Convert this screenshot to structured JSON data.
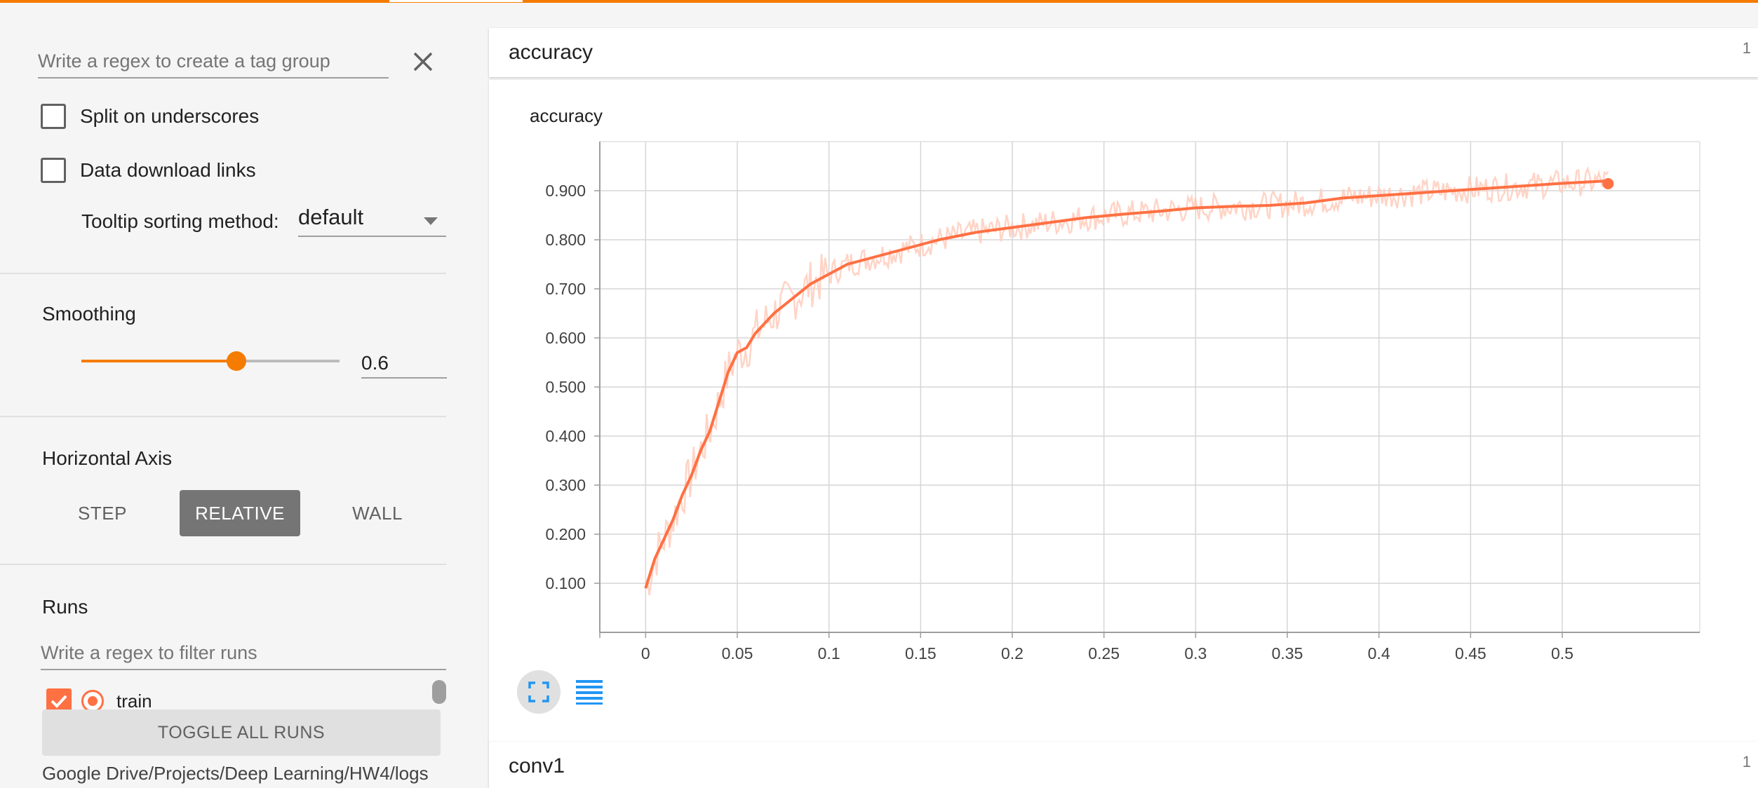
{
  "sidebar": {
    "tag_regex_placeholder": "Write a regex to create a tag group",
    "split_on_underscores_label": "Split on underscores",
    "data_download_links_label": "Data download links",
    "tooltip_sorting_label": "Tooltip sorting method:",
    "tooltip_sorting_value": "default",
    "smoothing": {
      "title": "Smoothing",
      "value": "0.6",
      "fraction": 0.6
    },
    "horizontal_axis": {
      "title": "Horizontal Axis",
      "options": [
        "STEP",
        "RELATIVE",
        "WALL"
      ],
      "selected": "RELATIVE"
    },
    "runs": {
      "title": "Runs",
      "filter_placeholder": "Write a regex to filter runs",
      "items": [
        {
          "name": "train",
          "checked": true,
          "color": "#ff7043"
        }
      ],
      "toggle_label": "TOGGLE ALL RUNS",
      "log_dir": "Google Drive/Projects/Deep Learning/HW4/logs"
    }
  },
  "main": {
    "cards": [
      {
        "title": "accuracy",
        "count": "1"
      },
      {
        "title": "conv1",
        "count": "1"
      }
    ]
  },
  "colors": {
    "accent": "#f57c00",
    "run_line": "#ff7043",
    "run_raw": "#ffccbc",
    "button_blue": "#2196f3"
  },
  "icons": {
    "clear": "close-icon",
    "fit": "fit-domain-icon",
    "log": "log-scale-icon"
  },
  "chart_data": {
    "type": "line",
    "title": "accuracy",
    "xlabel": "",
    "ylabel": "",
    "xlim": [
      -0.025,
      0.575
    ],
    "ylim": [
      0,
      1.0
    ],
    "x_ticks": [
      0,
      0.05,
      0.1,
      0.15,
      0.2,
      0.25,
      0.3,
      0.35,
      0.4,
      0.45,
      0.5
    ],
    "x_tick_labels": [
      "0",
      "0.05",
      "0.1",
      "0.15",
      "0.2",
      "0.25",
      "0.3",
      "0.35",
      "0.4",
      "0.45",
      "0.5"
    ],
    "y_ticks": [
      0.1,
      0.2,
      0.3,
      0.4,
      0.5,
      0.6,
      0.7,
      0.8,
      0.9
    ],
    "y_tick_labels": [
      "0.100",
      "0.200",
      "0.300",
      "0.400",
      "0.500",
      "0.600",
      "0.700",
      "0.800",
      "0.900"
    ],
    "grid": true,
    "series": [
      {
        "x": [
          0,
          0.005,
          0.01,
          0.015,
          0.02,
          0.025,
          0.03,
          0.035,
          0.04,
          0.045,
          0.05,
          0.055,
          0.06,
          0.07,
          0.08,
          0.09,
          0.1,
          0.11,
          0.12,
          0.13,
          0.14,
          0.15,
          0.16,
          0.18,
          0.2,
          0.22,
          0.24,
          0.26,
          0.28,
          0.3,
          0.32,
          0.34,
          0.36,
          0.38,
          0.4,
          0.42,
          0.44,
          0.46,
          0.48,
          0.5,
          0.525
        ],
        "y": [
          0.09,
          0.15,
          0.19,
          0.23,
          0.28,
          0.32,
          0.37,
          0.41,
          0.47,
          0.53,
          0.57,
          0.58,
          0.61,
          0.65,
          0.68,
          0.71,
          0.73,
          0.75,
          0.76,
          0.77,
          0.78,
          0.79,
          0.8,
          0.815,
          0.825,
          0.835,
          0.845,
          0.852,
          0.858,
          0.865,
          0.868,
          0.87,
          0.875,
          0.885,
          0.89,
          0.895,
          0.9,
          0.905,
          0.91,
          0.915,
          0.92
        ]
      }
    ]
  }
}
